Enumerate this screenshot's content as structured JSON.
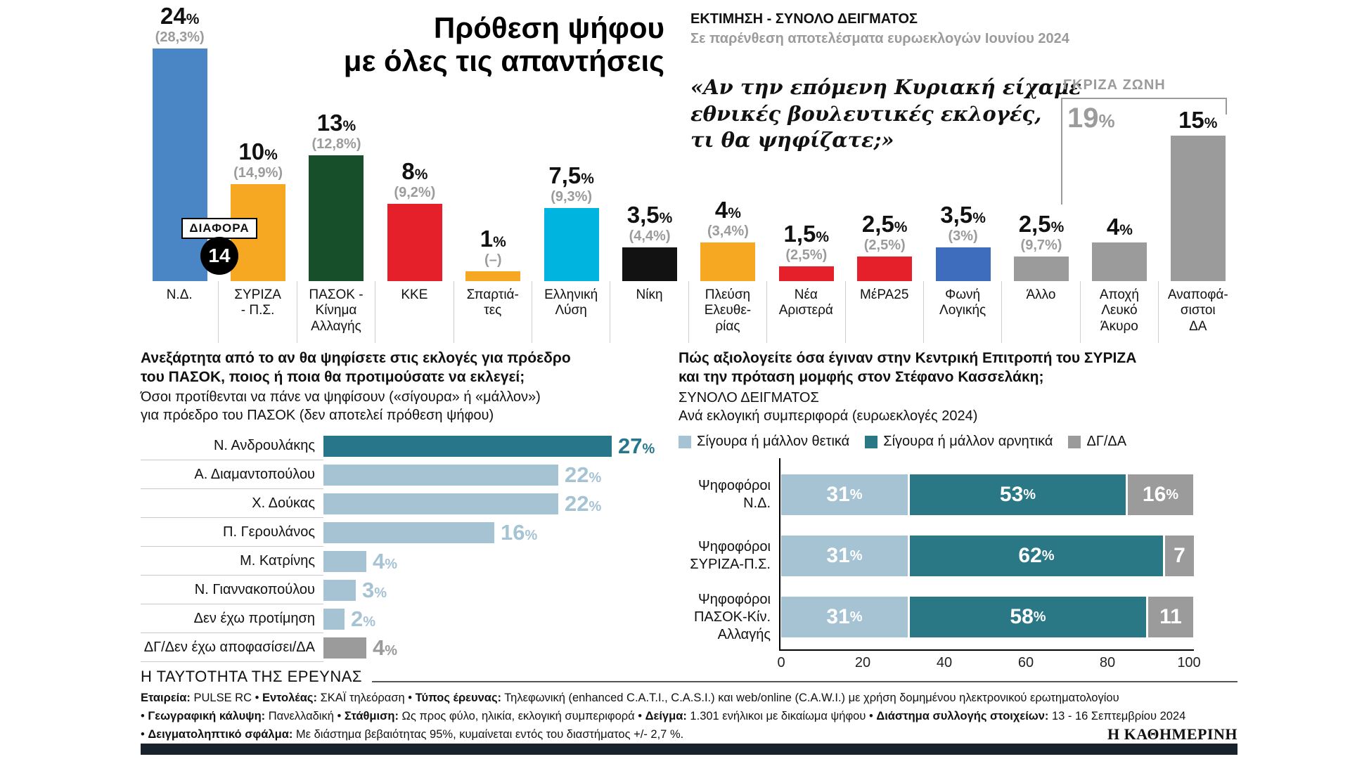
{
  "colors": {
    "nd_blue": "#4a86c6",
    "syriza_orange": "#f7a823",
    "pasok_green": "#174f2b",
    "kke_red": "#e5202a",
    "elliniki_lysi_cyan": "#00b4e0",
    "niki_black": "#121212",
    "foni_logikis_blue": "#3e6dbe",
    "gray": "#9b9b9b",
    "teal_dark": "#2a7886",
    "teal_light": "#a5c3d3"
  },
  "top": {
    "title_line1": "Πρόθεση ψήφου",
    "title_line2": "με όλες τις απαντήσεις",
    "header": "ΕΚΤΙΜΗΣΗ - ΣΥΝΟΛΟ ΔΕΙΓΜΑΤΟΣ",
    "subheader": "Σε παρένθεση αποτελέσματα ευρωεκλογών Ιουνίου 2024",
    "quote": "«Αν την επόμενη Κυριακή είχαμε\nεθνικές βουλευτικές εκλογές,\nτι θα ψηφίζατε;»",
    "diafora_label": "ΔΙΑΦΟΡΑ",
    "diafora_value": "14",
    "gray_zone_label": "ΓΚΡΙΖΑ ΖΩΝΗ",
    "gray_zone_value": "19",
    "gray_zone_unit": "%"
  },
  "chart_data": [
    {
      "id": "vote-intention",
      "type": "bar",
      "title": "Πρόθεση ψήφου με όλες τις απαντήσεις",
      "subtitle": "ΕΚΤΙΜΗΣΗ - ΣΥΝΟΛΟ ΔΕΙΓΜΑΤΟΣ",
      "note": "Σε παρένθεση αποτελέσματα ευρωεκλογών Ιουνίου 2024",
      "unit": "%",
      "ylim": [
        0,
        28
      ],
      "parties": [
        {
          "label": "Ν.Δ.",
          "value": 24,
          "value_label": "24",
          "prev": "(28,3%)",
          "color": "#4a86c6"
        },
        {
          "label": "ΣΥΡΙΖΑ\n- Π.Σ.",
          "value": 10,
          "value_label": "10",
          "prev": "(14,9%)",
          "color": "#f7a823"
        },
        {
          "label": "ΠΑΣΟΚ -\nΚίνημα\nΑλλαγής",
          "value": 13,
          "value_label": "13",
          "prev": "(12,8%)",
          "color": "#174f2b"
        },
        {
          "label": "ΚΚΕ",
          "value": 8,
          "value_label": "8",
          "prev": "(9,2%)",
          "color": "#e5202a"
        },
        {
          "label": "Σπαρτιά-\nτες",
          "value": 1,
          "value_label": "1",
          "prev": "(–)",
          "color": "#f7a823"
        },
        {
          "label": "Ελληνική\nΛύση",
          "value": 7.5,
          "value_label": "7,5",
          "prev": "(9,3%)",
          "color": "#00b4e0"
        },
        {
          "label": "Νίκη",
          "value": 3.5,
          "value_label": "3,5",
          "prev": "(4,4%)",
          "color": "#121212"
        },
        {
          "label": "Πλεύση\nΕλευθε-\nρίας",
          "value": 4,
          "value_label": "4",
          "prev": "(3,4%)",
          "color": "#f7a823"
        },
        {
          "label": "Νέα\nΑριστερά",
          "value": 1.5,
          "value_label": "1,5",
          "prev": "(2,5%)",
          "color": "#e5202a"
        },
        {
          "label": "ΜέΡΑ25",
          "value": 2.5,
          "value_label": "2,5",
          "prev": "(2,5%)",
          "color": "#e5202a"
        },
        {
          "label": "Φωνή\nΛογικής",
          "value": 3.5,
          "value_label": "3,5",
          "prev": "(3%)",
          "color": "#3e6dbe"
        },
        {
          "label": "Άλλο",
          "value": 2.5,
          "value_label": "2,5",
          "prev": "(9,7%)",
          "color": "#9b9b9b"
        },
        {
          "label": "Αποχή\nΛευκό\nΆκυρο",
          "value": 4,
          "value_label": "4",
          "prev": null,
          "color": "#9b9b9b"
        },
        {
          "label": "Αναποφά-\nσιστοι\nΔΑ",
          "value": 15,
          "value_label": "15",
          "prev": null,
          "color": "#9b9b9b"
        }
      ],
      "annotations": {
        "diafora": {
          "label": "ΔΙΑΦΟΡΑ",
          "value": 14
        },
        "gray_zone": {
          "label": "ΓΚΡΙΖΑ ΖΩΝΗ",
          "value": 19,
          "covers": [
            "Αποχή Λευκό Άκυρο",
            "Αναποφάσιστοι ΔΑ"
          ]
        }
      }
    },
    {
      "id": "pasok-president",
      "type": "bar",
      "orientation": "horizontal",
      "title": "Ανεξάρτητα από το αν θα ψηφίσετε στις εκλογές για πρόεδρο του ΠΑΣΟΚ, ποιος ή ποια θα προτιμούσατε να εκλεγεί;",
      "unit": "%",
      "xlim": [
        0,
        30
      ],
      "rows": [
        {
          "label": "Ν. Ανδρουλάκης",
          "value": 27,
          "value_label": "27",
          "tone": "dark"
        },
        {
          "label": "Α. Διαμαντοπούλου",
          "value": 22,
          "value_label": "22",
          "tone": "light"
        },
        {
          "label": "Χ. Δούκας",
          "value": 22,
          "value_label": "22",
          "tone": "light"
        },
        {
          "label": "Π. Γερουλάνος",
          "value": 16,
          "value_label": "16",
          "tone": "light"
        },
        {
          "label": "Μ. Κατρίνης",
          "value": 4,
          "value_label": "4",
          "tone": "light"
        },
        {
          "label": "Ν. Γιαννακοπούλου",
          "value": 3,
          "value_label": "3",
          "tone": "light"
        },
        {
          "label": "Δεν έχω προτίμηση",
          "value": 2,
          "value_label": "2",
          "tone": "light"
        },
        {
          "label": "ΔΓ/Δεν έχω αποφασίσει/ΔΑ",
          "value": 4,
          "value_label": "4",
          "tone": "gray"
        }
      ]
    },
    {
      "id": "syriza-evaluation",
      "type": "stacked-bar",
      "orientation": "horizontal",
      "legend": [
        "Σίγουρα ή μάλλον θετικά",
        "Σίγουρα ή μάλλον αρνητικά",
        "ΔΓ/ΔΑ"
      ],
      "x_ticks": [
        0,
        20,
        40,
        60,
        80,
        100
      ],
      "xlim": [
        0,
        100
      ],
      "rows": [
        {
          "label": "Ψηφοφόροι\nΝ.Δ.",
          "values": [
            31,
            53,
            16
          ],
          "value_labels": [
            "31%",
            "53%",
            "16%"
          ]
        },
        {
          "label": "Ψηφοφόροι\nΣΥΡΙΖΑ-Π.Σ.",
          "values": [
            31,
            62,
            7
          ],
          "value_labels": [
            "31%",
            "62%",
            "7"
          ]
        },
        {
          "label": "Ψηφοφόροι\nΠΑΣΟΚ-Κίν.\nΑλλαγής",
          "values": [
            31,
            58,
            11
          ],
          "value_labels": [
            "31%",
            "58%",
            "11"
          ]
        }
      ]
    }
  ],
  "bottom_left": {
    "title": "Ανεξάρτητα από το αν θα ψηφίσετε στις εκλογές για πρόεδρο\nτου ΠΑΣΟΚ, ποιος ή ποια θα προτιμούσατε να εκλεγεί;",
    "subtitle": "Όσοι προτίθενται να πάνε να ψηφίσουν («σίγουρα» ή «μάλλον»)\nγια πρόεδρο του ΠΑΣΟΚ (δεν αποτελεί πρόθεση ψήφου)"
  },
  "bottom_right": {
    "title": "Πώς αξιολογείτε όσα έγιναν στην Κεντρική Επιτροπή του ΣΥΡΙΖΑ\nκαι την πρόταση μομφής στον Στέφανο Κασσελάκη;",
    "subtitle1": "ΣΥΝΟΛΟ ΔΕΙΓΜΑΤΟΣ",
    "subtitle2": "Ανά εκλογική συμπεριφορά (ευρωεκλογές 2024)"
  },
  "footer": {
    "title": "Η ΤΑΥΤΟΤΗΤΑ ΤΗΣ ΕΡΕΥΝΑΣ",
    "lines": [
      [
        {
          "bold": true,
          "text": "Εταιρεία:"
        },
        {
          "bold": false,
          "text": " PULSE RC • "
        },
        {
          "bold": true,
          "text": "Εντολέας:"
        },
        {
          "bold": false,
          "text": " ΣΚΑΪ τηλεόραση • "
        },
        {
          "bold": true,
          "text": "Τύπος έρευνας:"
        },
        {
          "bold": false,
          "text": " Τηλεφωνική (enhanced C.A.T.I., C.A.S.I.) και web/online (C.A.W.I.) με χρήση δομημένου ηλεκτρονικού ερωτηματολογίου"
        }
      ],
      [
        {
          "bold": false,
          "text": "• "
        },
        {
          "bold": true,
          "text": "Γεωγραφική κάλυψη:"
        },
        {
          "bold": false,
          "text": " Πανελλαδική • "
        },
        {
          "bold": true,
          "text": "Στάθμιση:"
        },
        {
          "bold": false,
          "text": " Ως προς φύλο, ηλικία, εκλογική συμπεριφορά • "
        },
        {
          "bold": true,
          "text": "Δείγμα:"
        },
        {
          "bold": false,
          "text": " 1.301 ενήλικοι με δικαίωμα ψήφου • "
        },
        {
          "bold": true,
          "text": "Διάστημα συλλογής στοιχείων:"
        },
        {
          "bold": false,
          "text": " 13 - 16 Σεπτεμβρίου 2024"
        }
      ],
      [
        {
          "bold": false,
          "text": "• "
        },
        {
          "bold": true,
          "text": "Δειγματοληπτικό σφάλμα:"
        },
        {
          "bold": false,
          "text": " Με διάστημα βεβαιότητας 95%, κυμαίνεται εντός του διαστήματος +/- 2,7 %."
        }
      ]
    ],
    "brand": "Η ΚΑΘΗΜΕΡΙΝΗ"
  }
}
